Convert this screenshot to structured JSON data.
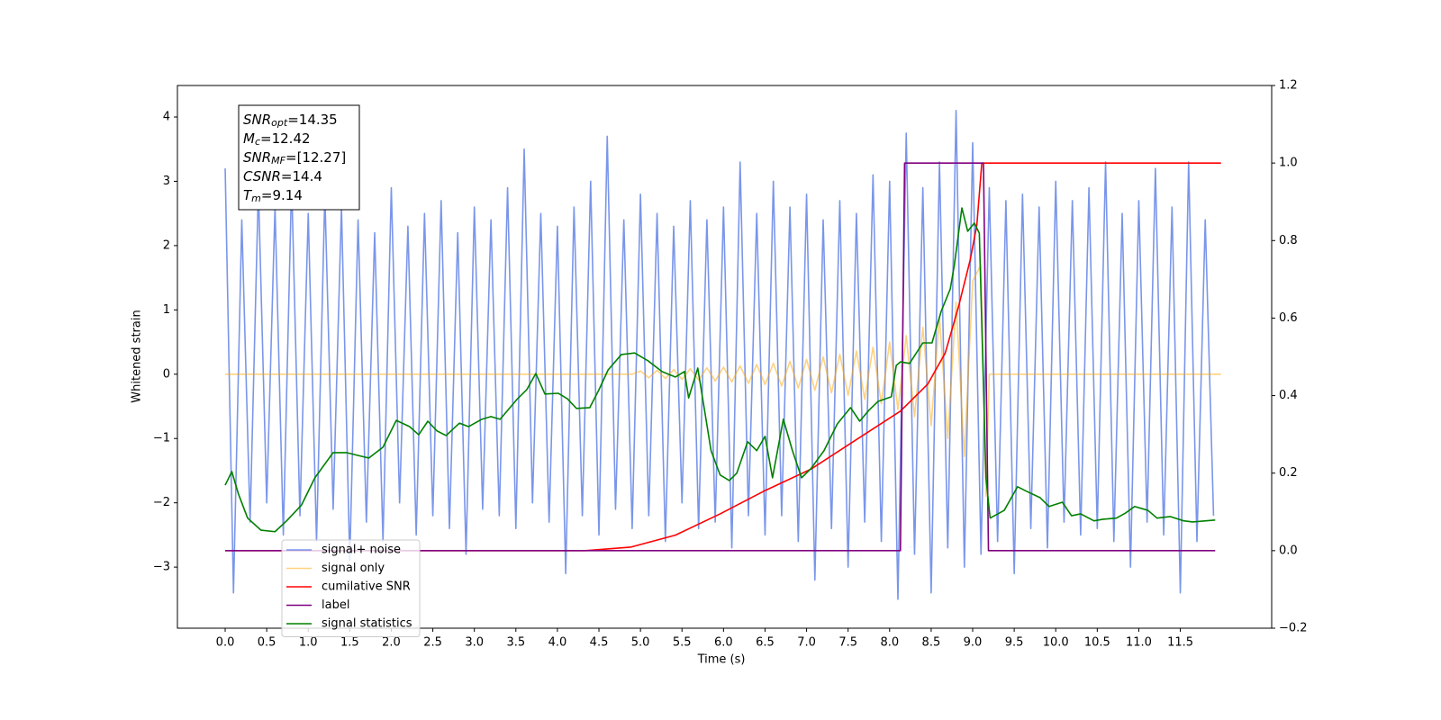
{
  "chart_data": {
    "type": "line",
    "xlabel": "Time (s)",
    "ylabel": "Whitened strain",
    "xlim": [
      -0.575,
      12.6
    ],
    "ylim": [
      -3.95,
      4.49
    ],
    "y2lim": [
      -0.2,
      1.2
    ],
    "xticks": [
      {
        "value": 0,
        "label": "0.0"
      },
      0.5,
      {
        "value": 1,
        "label": "1.0"
      },
      1.5,
      {
        "value": 2,
        "label": "2.0"
      },
      2.5,
      {
        "value": 3,
        "label": "3.0"
      },
      3.5,
      {
        "value": 4,
        "label": "4.0"
      },
      4.5,
      {
        "value": 5,
        "label": "5.0"
      },
      5.5,
      {
        "value": 6,
        "label": "6.0"
      },
      6.5,
      {
        "value": 7,
        "label": "7.0"
      },
      7.5,
      {
        "value": 8,
        "label": "8.0"
      },
      8.5,
      {
        "value": 9,
        "label": "9.0"
      },
      9.5,
      {
        "value": 10,
        "label": "10.0"
      },
      10.5,
      {
        "value": 11,
        "label": "11.0"
      },
      11.5
    ],
    "yticks": [
      {
        "value": -3,
        "label": "−3"
      },
      {
        "value": -2,
        "label": "−2"
      },
      {
        "value": -1,
        "label": "−1"
      },
      0,
      1,
      2,
      3,
      4
    ],
    "y2ticks": [
      {
        "value": -0.2,
        "label": "−0.2"
      },
      {
        "value": 0,
        "label": "0.0"
      },
      {
        "value": 0.2,
        "label": "0.2"
      },
      {
        "value": 0.4,
        "label": "0.4"
      },
      {
        "value": 0.6,
        "label": "0.6"
      },
      {
        "value": 0.8,
        "label": "0.8"
      },
      {
        "value": 1,
        "label": "1.0"
      },
      {
        "value": 1.2,
        "label": "1.2"
      }
    ],
    "legend": "lower left",
    "annotation": [
      {
        "base": "SNR",
        "sub": "opt",
        "text": "=14.35"
      },
      {
        "base": "M",
        "sub": "c",
        "text": "=12.42"
      },
      {
        "base": "SNR",
        "sub": "MF",
        "text": "=[12.27]"
      },
      {
        "base": "CSNR",
        "sub": "",
        "text": "=14.4"
      },
      {
        "base": "T",
        "sub": "m",
        "text": "=9.14"
      }
    ],
    "series": [
      {
        "name": "signal+ noise",
        "color": "#4169e1",
        "alpha": 0.7,
        "x": [
          0.0,
          0.1,
          0.2,
          0.3,
          0.4,
          0.5,
          0.6,
          0.7,
          0.8,
          0.9,
          1.0,
          1.1,
          1.2,
          1.3,
          1.4,
          1.5,
          1.6,
          1.7,
          1.8,
          1.9,
          2.0,
          2.1,
          2.2,
          2.3,
          2.4,
          2.5,
          2.6,
          2.7,
          2.8,
          2.9,
          3.0,
          3.1,
          3.2,
          3.3,
          3.4,
          3.5,
          3.6,
          3.7,
          3.8,
          3.9,
          4.0,
          4.1,
          4.2,
          4.3,
          4.4,
          4.5,
          4.6,
          4.7,
          4.8,
          4.9,
          5.0,
          5.1,
          5.2,
          5.3,
          5.4,
          5.5,
          5.6,
          5.7,
          5.8,
          5.9,
          6.0,
          6.1,
          6.2,
          6.3,
          6.4,
          6.5,
          6.6,
          6.7,
          6.8,
          6.9,
          7.0,
          7.1,
          7.2,
          7.3,
          7.4,
          7.5,
          7.6,
          7.7,
          7.8,
          7.9,
          8.0,
          8.1,
          8.2,
          8.3,
          8.4,
          8.5,
          8.6,
          8.7,
          8.8,
          8.9,
          9.0,
          9.1,
          9.2,
          9.3,
          9.4,
          9.5,
          9.6,
          9.7,
          9.8,
          9.9,
          10.0,
          10.1,
          10.2,
          10.3,
          10.4,
          10.5,
          10.6,
          10.7,
          10.8,
          10.9,
          11.0,
          11.1,
          11.2,
          11.3,
          11.4,
          11.5,
          11.6,
          11.7,
          11.8,
          11.9
        ],
        "values": [
          3.2,
          -3.4,
          2.4,
          -2.3,
          2.9,
          -2.0,
          2.6,
          -2.5,
          3.0,
          -2.2,
          2.5,
          -2.6,
          2.8,
          -2.1,
          2.6,
          -2.9,
          2.4,
          -2.3,
          2.2,
          -2.6,
          2.9,
          -2.0,
          2.3,
          -2.5,
          2.5,
          -2.2,
          2.7,
          -2.4,
          2.2,
          -2.8,
          2.6,
          -2.1,
          2.4,
          -2.2,
          2.9,
          -2.4,
          3.5,
          -2.0,
          2.5,
          -2.3,
          2.3,
          -3.1,
          2.6,
          -2.2,
          3.0,
          -2.5,
          3.7,
          -2.1,
          2.4,
          -2.4,
          2.8,
          -2.2,
          2.5,
          -2.6,
          2.3,
          -2.0,
          2.7,
          -2.4,
          2.4,
          -2.3,
          2.6,
          -2.7,
          3.3,
          -2.2,
          2.5,
          -2.5,
          3.0,
          -2.2,
          2.6,
          -2.6,
          2.8,
          -3.2,
          2.4,
          -2.4,
          2.7,
          -3.0,
          2.5,
          -2.3,
          3.1,
          -2.6,
          3.0,
          -3.5,
          3.75,
          -2.8,
          2.9,
          -3.4,
          3.3,
          -2.7,
          4.1,
          -3.0,
          3.6,
          -2.8,
          2.9,
          -2.6,
          2.7,
          -3.1,
          2.8,
          -2.4,
          2.6,
          -2.7,
          3.0,
          -2.3,
          2.7,
          -2.5,
          2.9,
          -2.4,
          3.3,
          -2.6,
          2.5,
          -3.0,
          2.7,
          -2.3,
          3.2,
          -2.5,
          2.6,
          -3.4,
          3.3,
          -2.6,
          2.4,
          -2.2
        ]
      },
      {
        "name": "signal only",
        "color": "#ffa500",
        "alpha": 0.5,
        "x": [
          0.0,
          4.9,
          5.0,
          5.1,
          5.2,
          5.3,
          5.4,
          5.5,
          5.6,
          5.7,
          5.8,
          5.9,
          6.0,
          6.1,
          6.2,
          6.3,
          6.4,
          6.5,
          6.6,
          6.7,
          6.8,
          6.9,
          7.0,
          7.1,
          7.2,
          7.3,
          7.4,
          7.5,
          7.6,
          7.7,
          7.8,
          7.9,
          8.0,
          8.1,
          8.2,
          8.3,
          8.4,
          8.5,
          8.6,
          8.7,
          8.8,
          8.9,
          9.0,
          9.1,
          9.16,
          9.2,
          11.99
        ],
        "values": [
          0,
          0,
          0.05,
          -0.055,
          0.06,
          -0.065,
          0.07,
          -0.08,
          0.085,
          -0.09,
          0.1,
          -0.105,
          0.11,
          -0.12,
          0.13,
          -0.14,
          0.15,
          -0.16,
          0.17,
          -0.185,
          0.2,
          -0.215,
          0.23,
          -0.25,
          0.27,
          -0.29,
          0.31,
          -0.33,
          0.36,
          -0.39,
          0.42,
          -0.46,
          0.5,
          -0.55,
          0.6,
          -0.66,
          0.73,
          -0.8,
          0.9,
          -1.0,
          1.12,
          -1.28,
          1.45,
          1.7,
          -1.9,
          0,
          0
        ]
      },
      {
        "name": "cumilative SNR",
        "color": "#ff0000",
        "axis": "y2",
        "x": [
          0.0,
          4.34,
          4.88,
          5.42,
          5.96,
          6.5,
          7.05,
          7.59,
          8.13,
          8.46,
          8.67,
          8.83,
          8.97,
          9.05,
          9.11,
          11.99
        ],
        "values": [
          0,
          0,
          0.009,
          0.04,
          0.095,
          0.155,
          0.21,
          0.285,
          0.36,
          0.43,
          0.51,
          0.63,
          0.75,
          0.84,
          1.0,
          1.0
        ]
      },
      {
        "name": "label",
        "color": "#800080",
        "axis": "y2",
        "x": [
          0.0,
          8.13,
          8.18,
          9.13,
          9.19,
          11.92
        ],
        "values": [
          0,
          0,
          1,
          1,
          0,
          0
        ]
      },
      {
        "name": "signal statistics",
        "color": "#008000",
        "axis": "y2",
        "x": [
          0.0,
          0.08,
          0.16,
          0.27,
          0.43,
          0.6,
          0.74,
          0.92,
          1.08,
          1.3,
          1.46,
          1.63,
          1.73,
          1.9,
          2.06,
          2.22,
          2.33,
          2.44,
          2.55,
          2.66,
          2.82,
          2.93,
          3.09,
          3.2,
          3.31,
          3.52,
          3.63,
          3.74,
          3.85,
          4.01,
          4.12,
          4.23,
          4.39,
          4.5,
          4.61,
          4.77,
          4.93,
          5.09,
          5.26,
          5.42,
          5.53,
          5.58,
          5.69,
          5.85,
          5.96,
          6.07,
          6.16,
          6.29,
          6.4,
          6.5,
          6.59,
          6.72,
          6.83,
          6.94,
          7.05,
          7.21,
          7.37,
          7.53,
          7.64,
          7.75,
          7.86,
          8.02,
          8.08,
          8.13,
          8.24,
          8.4,
          8.51,
          8.62,
          8.73,
          8.78,
          8.87,
          8.94,
          9.02,
          9.08,
          9.16,
          9.21,
          9.38,
          9.54,
          9.65,
          9.81,
          9.92,
          10.08,
          10.19,
          10.3,
          10.46,
          10.57,
          10.73,
          10.84,
          10.95,
          11.11,
          11.22,
          11.38,
          11.54,
          11.65,
          11.92
        ],
        "values": [
          0.169,
          0.204,
          0.146,
          0.084,
          0.053,
          0.049,
          0.077,
          0.118,
          0.188,
          0.253,
          0.253,
          0.244,
          0.239,
          0.267,
          0.336,
          0.32,
          0.299,
          0.334,
          0.309,
          0.297,
          0.329,
          0.32,
          0.339,
          0.346,
          0.339,
          0.392,
          0.415,
          0.457,
          0.404,
          0.406,
          0.392,
          0.367,
          0.369,
          0.415,
          0.466,
          0.506,
          0.51,
          0.49,
          0.462,
          0.448,
          0.462,
          0.394,
          0.471,
          0.258,
          0.195,
          0.181,
          0.2,
          0.281,
          0.258,
          0.295,
          0.188,
          0.339,
          0.258,
          0.188,
          0.211,
          0.258,
          0.327,
          0.369,
          0.334,
          0.362,
          0.385,
          0.397,
          0.478,
          0.487,
          0.483,
          0.536,
          0.536,
          0.617,
          0.675,
          0.738,
          0.884,
          0.824,
          0.845,
          0.819,
          0.188,
          0.084,
          0.104,
          0.165,
          0.153,
          0.137,
          0.114,
          0.125,
          0.09,
          0.095,
          0.077,
          0.081,
          0.084,
          0.097,
          0.114,
          0.104,
          0.084,
          0.088,
          0.077,
          0.074,
          0.079
        ]
      }
    ]
  }
}
